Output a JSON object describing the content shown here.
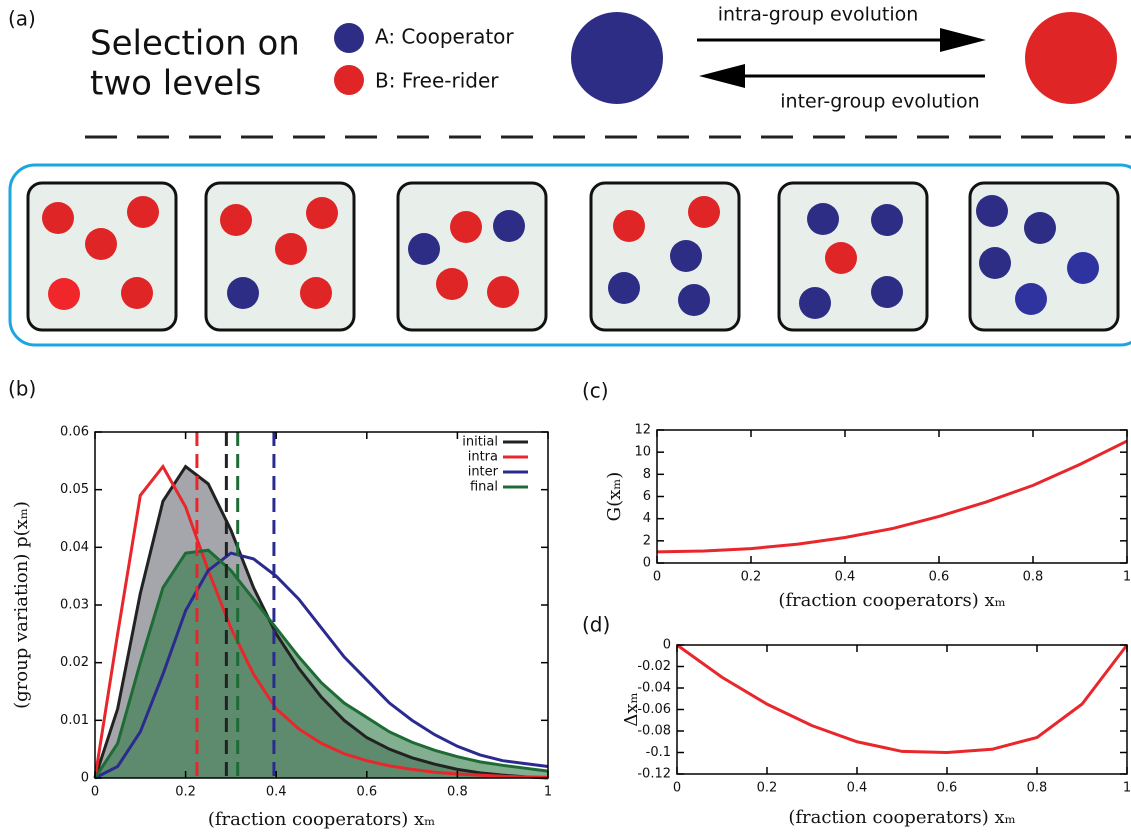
{
  "panel_a": {
    "label": "(a)",
    "title": [
      "Selection on",
      "two levels"
    ],
    "legend": [
      "A: Cooperator",
      "B: Free-rider"
    ],
    "arrows": [
      "intra-group evolution",
      "inter-group evolution"
    ]
  },
  "chart_data": [
    {
      "type": "line",
      "label": "(b)",
      "xlabel": "(fraction cooperators) xₘ",
      "ylabel": "(group variation) p(xₘ)",
      "x": [
        0,
        0.05,
        0.1,
        0.15,
        0.2,
        0.25,
        0.3,
        0.35,
        0.4,
        0.45,
        0.5,
        0.55,
        0.6,
        0.65,
        0.7,
        0.75,
        0.8,
        0.85,
        0.9,
        0.95,
        1
      ],
      "xlim": [
        0,
        1
      ],
      "ylim": [
        0,
        0.06
      ],
      "xticks": [
        0,
        0.2,
        0.4,
        0.6,
        0.8,
        1
      ],
      "yticks": [
        0,
        0.01,
        0.02,
        0.03,
        0.04,
        0.05,
        0.06
      ],
      "legend": "top-right",
      "series": [
        {
          "name": "initial",
          "color": "#222222",
          "fill": "#8e9096",
          "mean": 0.29,
          "values": [
            0,
            0.012,
            0.032,
            0.048,
            0.054,
            0.051,
            0.043,
            0.033,
            0.025,
            0.019,
            0.014,
            0.01,
            0.007,
            0.005,
            0.0035,
            0.0024,
            0.0015,
            0.0009,
            0.0005,
            0.0002,
            0
          ]
        },
        {
          "name": "intra",
          "color": "#e8262b",
          "mean": 0.225,
          "values": [
            0,
            0.025,
            0.049,
            0.054,
            0.047,
            0.036,
            0.026,
            0.018,
            0.012,
            0.0085,
            0.006,
            0.0042,
            0.003,
            0.0021,
            0.0015,
            0.001,
            0.0007,
            0.0005,
            0.0003,
            0.0002,
            0.0001
          ]
        },
        {
          "name": "inter",
          "color": "#2b2a8f",
          "mean": 0.395,
          "values": [
            0,
            0.002,
            0.008,
            0.018,
            0.029,
            0.036,
            0.039,
            0.038,
            0.035,
            0.031,
            0.026,
            0.021,
            0.017,
            0.013,
            0.01,
            0.0075,
            0.0055,
            0.004,
            0.003,
            0.0025,
            0.002
          ]
        },
        {
          "name": "final",
          "color": "#1e6b35",
          "fill": "#2f7a45",
          "mean": 0.315,
          "values": [
            0,
            0.006,
            0.02,
            0.033,
            0.039,
            0.0395,
            0.036,
            0.031,
            0.026,
            0.021,
            0.0165,
            0.013,
            0.0105,
            0.008,
            0.0062,
            0.0048,
            0.0037,
            0.0028,
            0.0022,
            0.0017,
            0.0012
          ]
        }
      ]
    },
    {
      "type": "line",
      "label": "(c)",
      "xlabel": "(fraction cooperators) xₘ",
      "ylabel": "G(xₘ)",
      "x": [
        0,
        0.1,
        0.2,
        0.3,
        0.4,
        0.5,
        0.6,
        0.7,
        0.8,
        0.9,
        1
      ],
      "xlim": [
        0,
        1
      ],
      "ylim": [
        0,
        12
      ],
      "xticks": [
        0,
        0.2,
        0.4,
        0.6,
        0.8,
        1
      ],
      "yticks": [
        0,
        2,
        4,
        6,
        8,
        10,
        12
      ],
      "series": [
        {
          "color": "#e8262b",
          "values": [
            1,
            1.08,
            1.3,
            1.7,
            2.3,
            3.1,
            4.2,
            5.5,
            7.0,
            8.9,
            11
          ]
        }
      ]
    },
    {
      "type": "line",
      "label": "(d)",
      "xlabel": "(fraction cooperators) xₘ",
      "ylabel": "Δxₘ",
      "x": [
        0,
        0.1,
        0.2,
        0.3,
        0.4,
        0.5,
        0.6,
        0.7,
        0.8,
        0.9,
        1
      ],
      "xlim": [
        0,
        1
      ],
      "ylim": [
        -0.12,
        0
      ],
      "xticks": [
        0,
        0.2,
        0.4,
        0.6,
        0.8,
        1
      ],
      "yticks": [
        0,
        -0.02,
        -0.04,
        -0.06,
        -0.08,
        -0.1,
        -0.12
      ],
      "series": [
        {
          "color": "#e8262b",
          "values": [
            0,
            -0.03,
            -0.055,
            -0.075,
            -0.09,
            -0.099,
            -0.1,
            -0.097,
            -0.086,
            -0.055,
            0
          ]
        }
      ]
    }
  ]
}
